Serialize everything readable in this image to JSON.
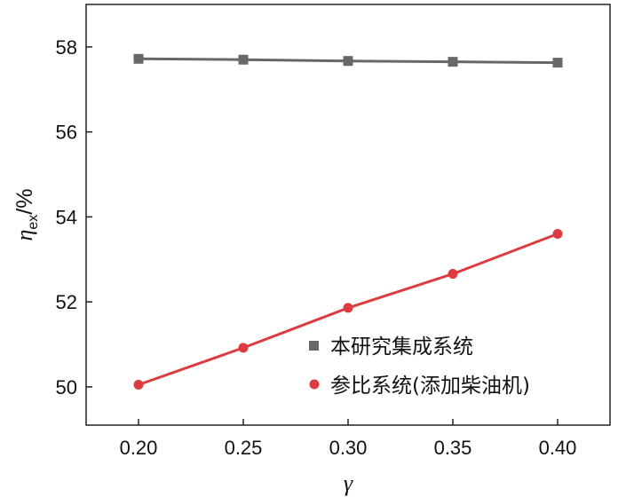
{
  "chart_data": {
    "type": "line",
    "title": "",
    "xlabel": "γ",
    "ylabel": "η",
    "ylabel_sub": "ex",
    "ylabel_unit": "/%",
    "x": [
      0.2,
      0.25,
      0.3,
      0.35,
      0.4
    ],
    "x_tick_labels": [
      "0.20",
      "0.25",
      "0.30",
      "0.35",
      "0.40"
    ],
    "y_ticks": [
      50,
      52,
      54,
      56,
      58
    ],
    "y_tick_labels": [
      "50",
      "52",
      "54",
      "56",
      "58"
    ],
    "xlim": [
      0.175,
      0.425
    ],
    "ylim": [
      49.1,
      59.0
    ],
    "grid": false,
    "legend_position": "bottom-right",
    "series": [
      {
        "name": "本研究集成系统",
        "values": [
          57.72,
          57.7,
          57.67,
          57.65,
          57.63
        ],
        "color": "#6b6667",
        "marker": "square"
      },
      {
        "name": "参比系统(添加柴油机)",
        "values": [
          50.05,
          50.92,
          51.86,
          52.66,
          53.6
        ],
        "color": "#dc3b3f",
        "marker": "circle"
      }
    ]
  }
}
